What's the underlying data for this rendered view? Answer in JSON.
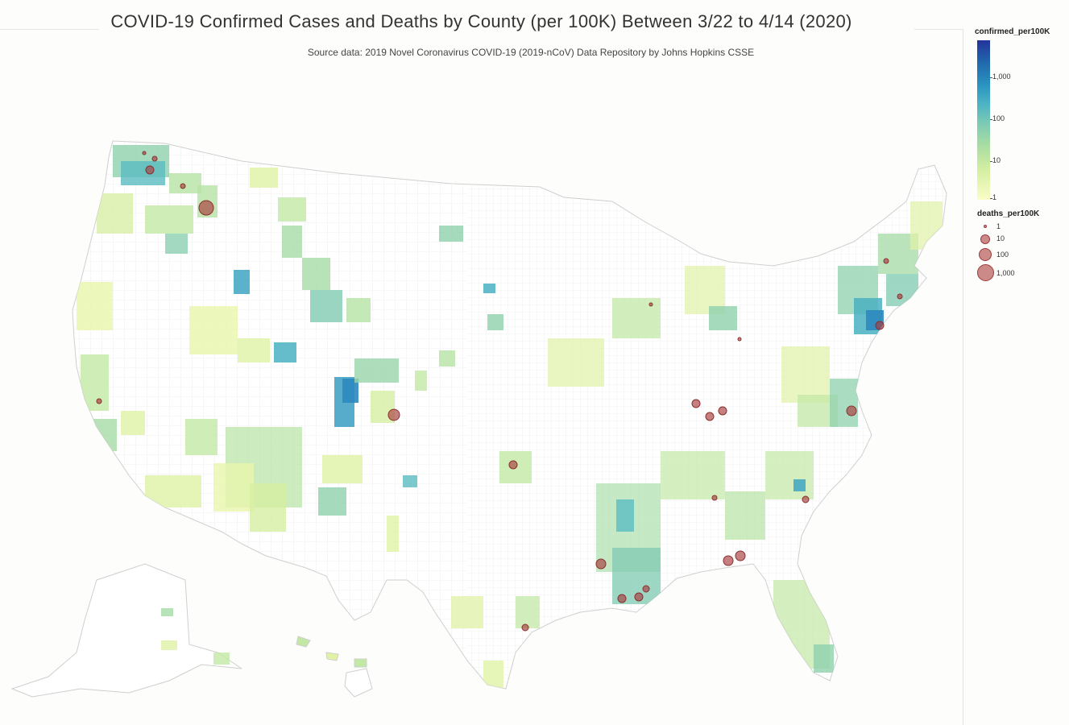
{
  "title": "COVID-19 Confirmed Cases and Deaths by County (per 100K) Between 3/22 to 4/14 (2020)",
  "subtitle": "Source data: 2019 Novel Coronavirus COVID-19 (2019-nCoV) Data Repository by Johns Hopkins CSSE",
  "legend_confirmed": {
    "title": "confirmed_per100K",
    "ticks": [
      "1,000",
      "100",
      "10",
      "1"
    ],
    "scale": "log",
    "colors": [
      "#fafdc8",
      "#a9dda2",
      "#4cb4c4",
      "#2168ad",
      "#23349a"
    ]
  },
  "legend_deaths": {
    "title": "deaths_per100K",
    "items": [
      {
        "label": "1",
        "value": 1
      },
      {
        "label": "10",
        "value": 10
      },
      {
        "label": "100",
        "value": 100
      },
      {
        "label": "1,000",
        "value": 1000
      }
    ],
    "color": "#a83c3c"
  }
}
